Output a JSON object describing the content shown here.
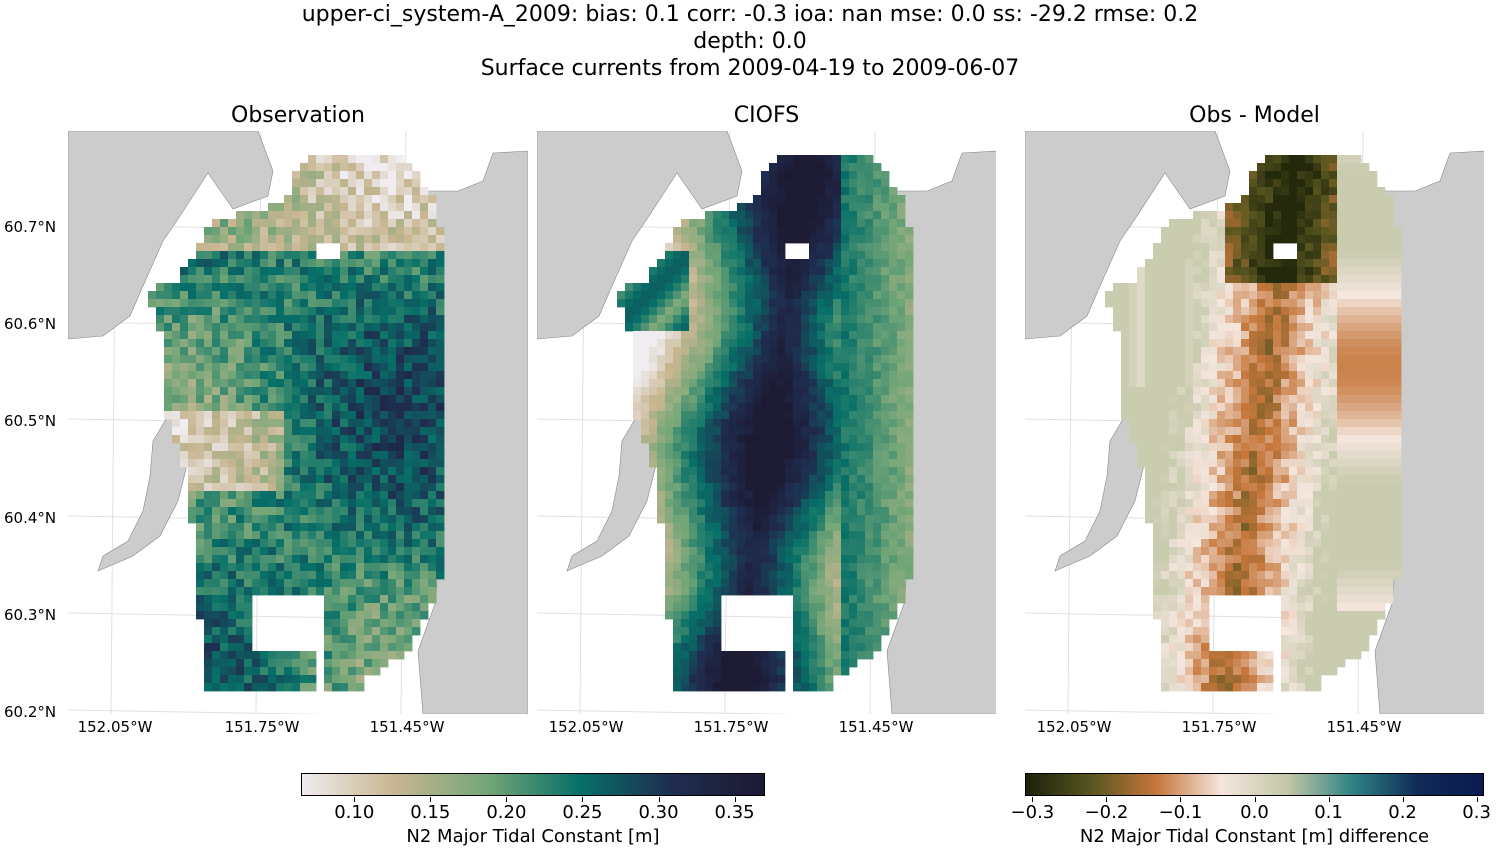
{
  "title": {
    "line1": "upper-ci_system-A_2009: bias: 0.1  corr: -0.3  ioa: nan  mse: 0.0  ss: -29.2  rmse: 0.2",
    "line2": "depth: 0.0",
    "line3": "Surface currents from 2009-04-19 to 2009-06-07"
  },
  "panels": [
    {
      "title": "Observation",
      "field": "obs"
    },
    {
      "title": "CIOFS",
      "field": "model"
    },
    {
      "title": "Obs - Model",
      "field": "diff"
    }
  ],
  "axes": {
    "lat_labels": [
      "60.7°N",
      "60.6°N",
      "60.5°N",
      "60.4°N",
      "60.3°N",
      "60.2°N"
    ],
    "lat_values": [
      60.7,
      60.6,
      60.5,
      60.4,
      60.3,
      60.2
    ],
    "lon_labels": [
      "152.05°W",
      "151.75°W",
      "151.45°W"
    ],
    "lon_values": [
      -152.05,
      -151.75,
      -151.45
    ],
    "lat_range": [
      60.2,
      60.8
    ],
    "lon_range": [
      -152.15,
      -151.23
    ]
  },
  "colorbars": [
    {
      "label": "N2 Major Tidal Constant [m]",
      "ticks": [
        "0.10",
        "0.15",
        "0.20",
        "0.25",
        "0.30",
        "0.35"
      ],
      "tick_values": [
        0.1,
        0.15,
        0.2,
        0.25,
        0.3,
        0.35
      ],
      "range": [
        0.065,
        0.37
      ],
      "colormap": [
        "#f0ecef",
        "#c8b691",
        "#74a678",
        "#077068",
        "#1f2d50",
        "#1d1a33"
      ]
    },
    {
      "label": "N2 Major Tidal Constant [m] difference",
      "ticks": [
        "−0.3",
        "−0.2",
        "−0.1",
        "0.0",
        "0.1",
        "0.2",
        "0.3"
      ],
      "tick_values": [
        -0.3,
        -0.2,
        -0.1,
        0.0,
        0.1,
        0.2,
        0.3
      ],
      "range": [
        -0.31,
        0.31
      ],
      "colormap": [
        "#1b2209",
        "#58551f",
        "#c6773c",
        "#f5e6de",
        "#c3c7a8",
        "#2f8385",
        "#0f2b57",
        "#0b1a4e"
      ]
    }
  ],
  "colors": {
    "land": "#cccccc",
    "coast": "#888888",
    "grid": "#e0e0e0"
  }
}
